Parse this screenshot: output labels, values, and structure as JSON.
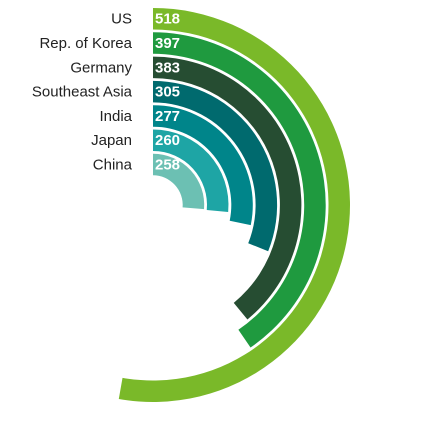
{
  "chart_data": {
    "type": "radial-bar",
    "categories": [
      "US",
      "Rep. of Korea",
      "Germany",
      "Southeast Asia",
      "India",
      "Japan",
      "China"
    ],
    "values": [
      518,
      397,
      383,
      305,
      277,
      260,
      258
    ],
    "colors": [
      "#7ab929",
      "#1f9a3f",
      "#264d32",
      "#006a6e",
      "#00858a",
      "#1ea5a5",
      "#6cc0b3"
    ]
  }
}
